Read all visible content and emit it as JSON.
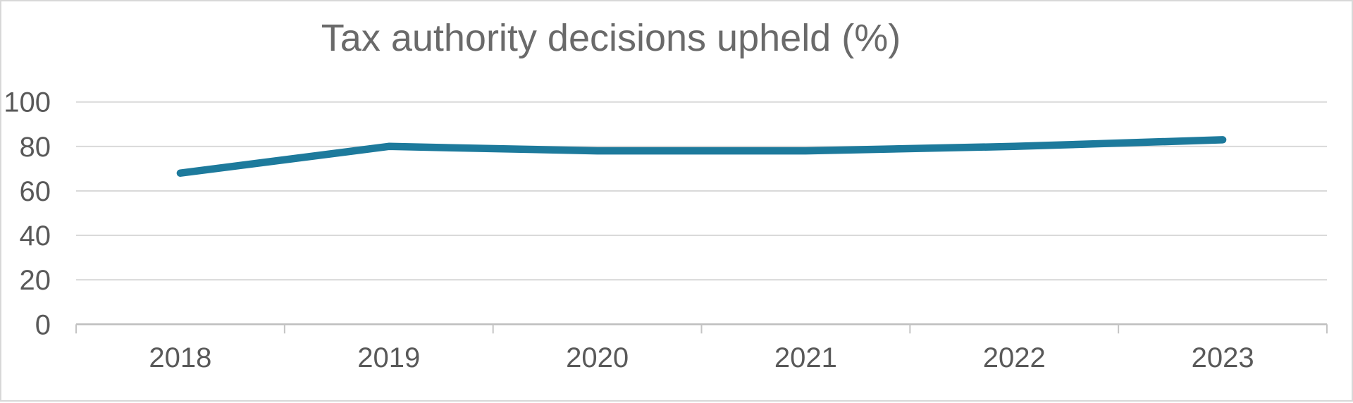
{
  "title": "Tax authority decisions upheld (%)",
  "colors": {
    "line": "#1d7a9c",
    "gridline": "#d9d9d9",
    "axis": "#bfbfbf",
    "tick": "#c4c4c4",
    "axis_label": "#595959",
    "title": "#6a6a6a",
    "border": "#d8d8d8",
    "background": "#ffffff"
  },
  "chart_data": {
    "type": "line",
    "title": "Tax authority decisions upheld (%)",
    "categories": [
      "2018",
      "2019",
      "2020",
      "2021",
      "2022",
      "2023"
    ],
    "series": [
      {
        "name": "Tax authority decisions upheld (%)",
        "values": [
          68,
          80,
          78,
          78,
          80,
          83
        ]
      }
    ],
    "xlabel": "",
    "ylabel": "",
    "ylim": [
      0,
      100
    ],
    "yticks": [
      0,
      20,
      40,
      60,
      80,
      100
    ],
    "grid": "horizontal",
    "legend": "none"
  }
}
